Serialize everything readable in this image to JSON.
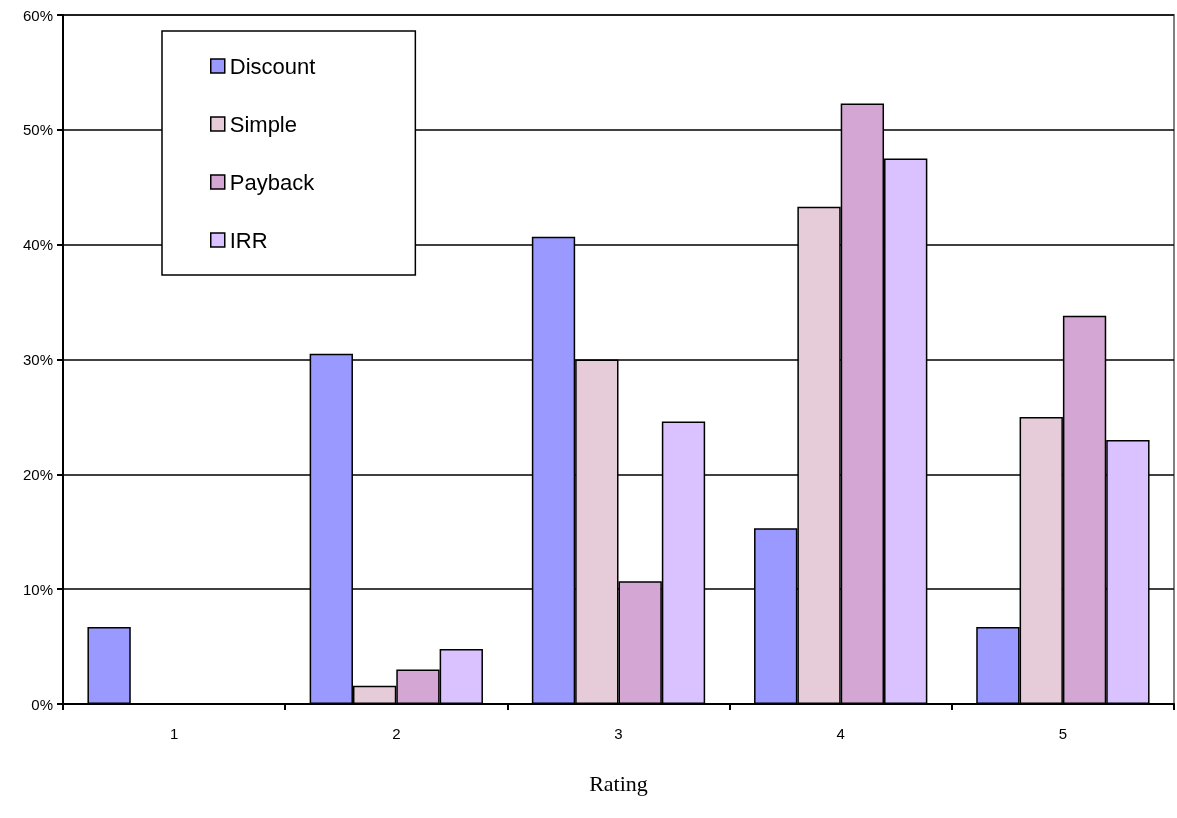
{
  "chart_data": {
    "type": "bar",
    "xlabel": "Rating",
    "categories": [
      "1",
      "2",
      "3",
      "4",
      "5"
    ],
    "series": [
      {
        "name": "Discount",
        "color": "#9999ff",
        "values": [
          6.7,
          30.5,
          40.7,
          15.3,
          6.7
        ]
      },
      {
        "name": "Simple",
        "color": "#e6ccd9",
        "values": [
          null,
          1.6,
          30,
          43.3,
          25
        ]
      },
      {
        "name": "Payback",
        "color": "#d3a6d3",
        "values": [
          null,
          3,
          10.7,
          52.3,
          33.8
        ]
      },
      {
        "name": "IRR",
        "color": "#d9c2ff",
        "values": [
          null,
          4.8,
          24.6,
          47.5,
          23
        ]
      }
    ],
    "ylim": [
      0,
      60
    ],
    "yticks": [
      {
        "value": 0,
        "label": "0%"
      },
      {
        "value": 10,
        "label": "10%"
      },
      {
        "value": 20,
        "label": "20%"
      },
      {
        "value": 30,
        "label": "30%"
      },
      {
        "value": 40,
        "label": "40%"
      },
      {
        "value": 50,
        "label": "50%"
      },
      {
        "value": 60,
        "label": "60%"
      }
    ],
    "grid": "y",
    "legend": "top left"
  }
}
